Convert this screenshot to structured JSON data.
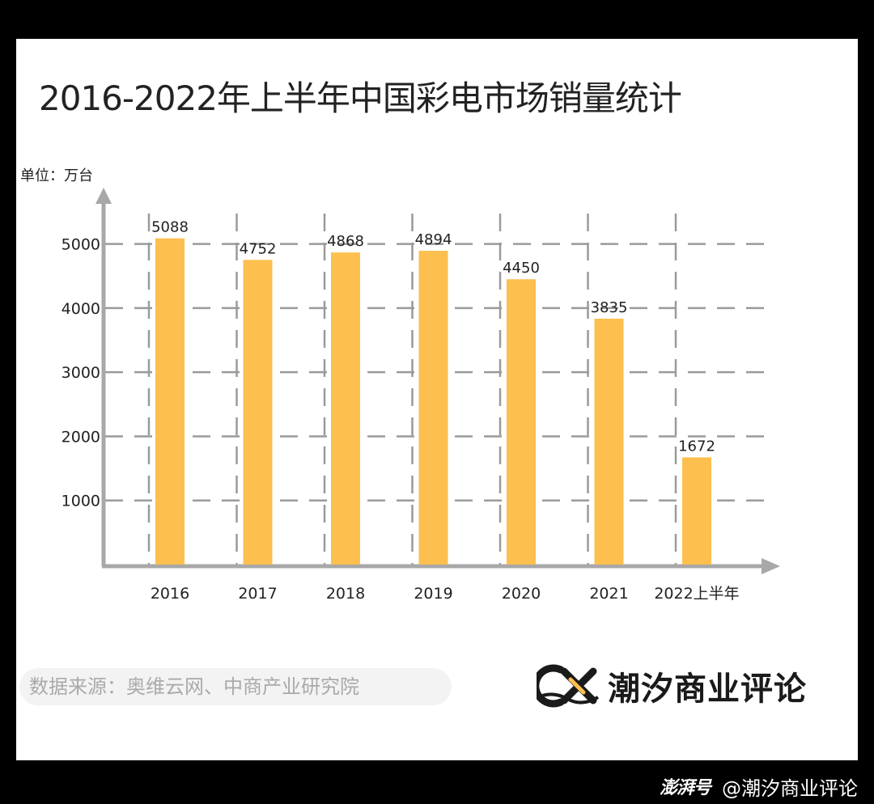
{
  "chart_data": {
    "type": "bar",
    "title": "2016-2022年上半年中国彩电市场销量统计",
    "unit_label": "单位：万台",
    "categories": [
      "2016",
      "2017",
      "2018",
      "2019",
      "2020",
      "2021",
      "2022上半年"
    ],
    "values": [
      5088,
      4752,
      4868,
      4894,
      4450,
      3835,
      1672
    ],
    "value_labels": [
      "5088",
      "4752",
      "4868",
      "4894",
      "4450",
      "3835",
      "1672"
    ],
    "y_ticks": [
      "1000",
      "2000",
      "3000",
      "4000",
      "5000"
    ],
    "ylim": [
      0,
      5500
    ],
    "grid": true,
    "bar_color": "#FDBF4E",
    "grid_color": "#9a9a9a",
    "axis_color": "#a8a8a8"
  },
  "source": "数据来源：奥维云网、中商产业研究院",
  "brand": {
    "name": "潮汐商业评论"
  },
  "footer": {
    "logo": "澎湃号",
    "handle": "@潮汐商业评论"
  }
}
